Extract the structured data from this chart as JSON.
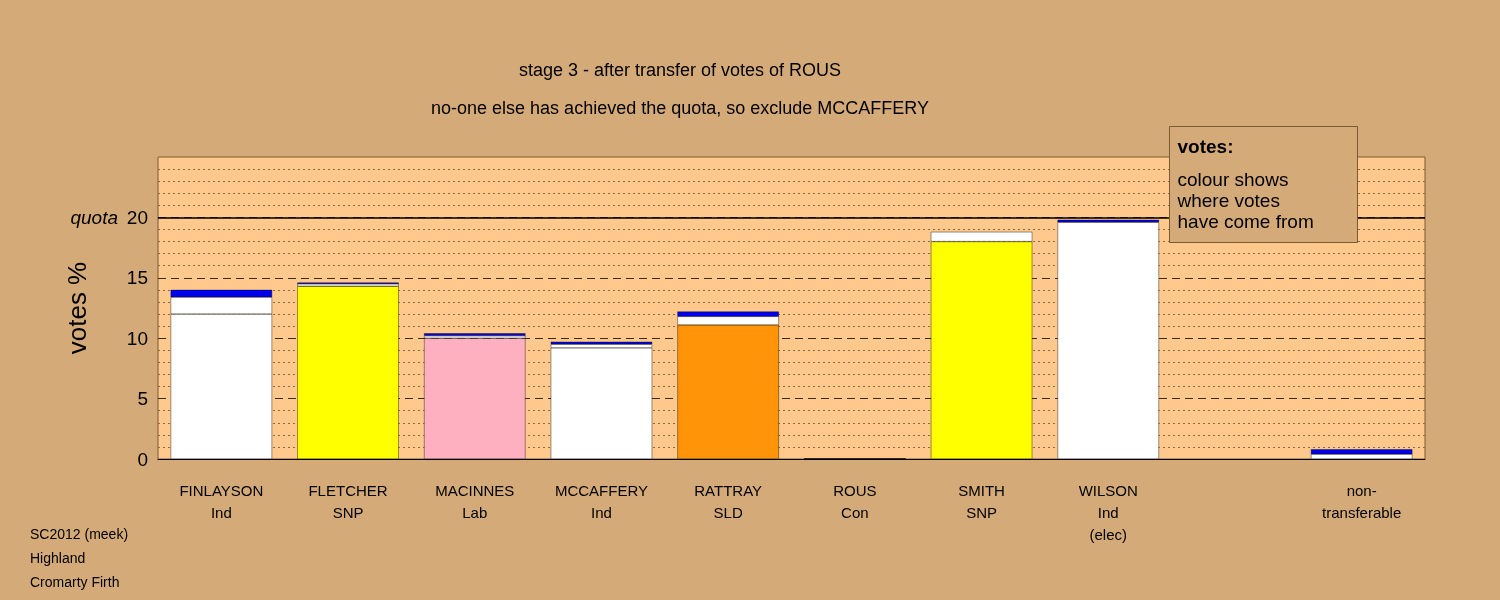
{
  "chart_data": {
    "type": "bar",
    "title": "stage 3 - after transfer of votes of ROUS",
    "subtitle": "no-one else has achieved the quota, so exclude MCCAFFERY",
    "ylabel": "votes %",
    "categories": [
      "FINLAYSON\nInd",
      "FLETCHER\nSNP",
      "MACINNES\nLab",
      "MCCAFFERY\nInd",
      "RATTRAY\nSLD",
      "ROUS\nCon",
      "SMITH\nSNP",
      "WILSON\nInd\n(elec)",
      null,
      "non-\ntransferable"
    ],
    "stacked": true,
    "series": [
      {
        "colors": [
          "#ffffff",
          "#ffff00",
          "#ffb0c0",
          "#ffffff",
          "#ff9408",
          "#000000",
          "#ffff00",
          "#ffffff",
          "#ffffff",
          "#ffffff"
        ],
        "values": [
          12.0,
          14.3,
          10.0,
          9.2,
          11.1,
          0,
          18.0,
          19.6,
          null,
          null
        ]
      },
      {
        "color": "#ffffff",
        "values": [
          1.4,
          0.2,
          0.2,
          0.3,
          0.7,
          0,
          0.8,
          null,
          null,
          0.4
        ]
      },
      {
        "color": "#0000ee",
        "values": [
          0.6,
          0.1,
          0.2,
          0.2,
          0.4,
          0,
          null,
          0.2,
          null,
          0.4
        ]
      }
    ],
    "ylim": [
      0,
      25
    ],
    "yticks": [
      0,
      {
        "value": 1,
        "label": null
      },
      {
        "value": 2,
        "label": null
      },
      {
        "value": 3,
        "label": null
      },
      {
        "value": 4,
        "label": null
      },
      5,
      {
        "value": 6,
        "label": null
      },
      {
        "value": 7,
        "label": null
      },
      {
        "value": 8,
        "label": null
      },
      {
        "value": 9,
        "label": null
      },
      10,
      {
        "value": 11,
        "label": null
      },
      {
        "value": 12,
        "label": null
      },
      {
        "value": 13,
        "label": null
      },
      {
        "value": 14,
        "label": null
      },
      15,
      {
        "value": 16,
        "label": null
      },
      {
        "value": 17,
        "label": null
      },
      {
        "value": 18,
        "label": null
      },
      {
        "value": 19,
        "label": null
      },
      20,
      {
        "value": 21,
        "label": null
      },
      {
        "value": 22,
        "label": null
      },
      {
        "value": 23,
        "label": null
      },
      {
        "value": 24,
        "label": null
      }
    ],
    "grid": "y",
    "ref_lines": [
      {
        "axis": "y",
        "value": 20,
        "label": "quota",
        "color": "#000000",
        "line_style": "solid"
      }
    ],
    "annotations": [
      "votes:",
      "colour shows where votes have come from",
      "SC2012 (meek)",
      "Highland",
      "Cromarty Firth"
    ]
  }
}
